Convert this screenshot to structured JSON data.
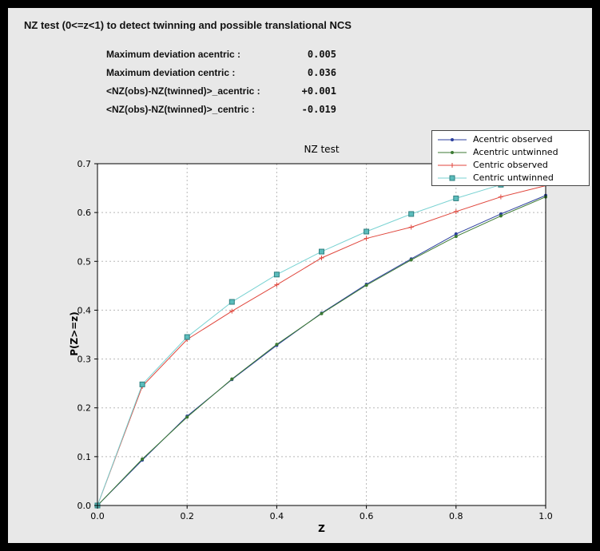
{
  "header": {
    "title": "NZ test (0<=z<1) to detect twinning and possible translational NCS"
  },
  "stats": {
    "rows": [
      {
        "label": "Maximum deviation acentric :",
        "value": "0.005"
      },
      {
        "label": "Maximum deviation centric :",
        "value": "0.036"
      },
      {
        "label": "<NZ(obs)-NZ(twinned)>_acentric :",
        "value": "+0.001"
      },
      {
        "label": "<NZ(obs)-NZ(twinned)>_centric :",
        "value": "-0.019"
      }
    ]
  },
  "colors": {
    "page_bg": "#000000",
    "window_bg": "#e8e8e8",
    "plot_bg": "#ffffff",
    "grid": "#b8b8b8",
    "frame": "#000000",
    "legend_bg": "#ffffff"
  },
  "chart_data": {
    "type": "line",
    "title": "NZ test",
    "xlabel": "Z",
    "ylabel": "P(Z>=z)",
    "xlim": [
      0.0,
      1.0
    ],
    "ylim": [
      0.0,
      0.7
    ],
    "xticks": [
      0.0,
      0.2,
      0.4,
      0.6,
      0.8,
      1.0
    ],
    "yticks": [
      0.0,
      0.1,
      0.2,
      0.3,
      0.4,
      0.5,
      0.6,
      0.7
    ],
    "grid": true,
    "legend_position": "top-right",
    "x": [
      0.0,
      0.1,
      0.2,
      0.3,
      0.4,
      0.5,
      0.6,
      0.7,
      0.8,
      0.9,
      1.0
    ],
    "series": [
      {
        "name": "Acentric observed",
        "color": "#2b3f9e",
        "marker": "point",
        "values": [
          0.0,
          0.093,
          0.183,
          0.258,
          0.328,
          0.394,
          0.453,
          0.505,
          0.556,
          0.597,
          0.635
        ]
      },
      {
        "name": "Acentric untwinned",
        "color": "#3c7a33",
        "marker": "point",
        "values": [
          0.0,
          0.095,
          0.181,
          0.259,
          0.33,
          0.393,
          0.451,
          0.503,
          0.551,
          0.593,
          0.632
        ]
      },
      {
        "name": "Centric observed",
        "color": "#e0463c",
        "marker": "plus",
        "values": [
          0.0,
          0.244,
          0.34,
          0.398,
          0.452,
          0.507,
          0.547,
          0.57,
          0.602,
          0.632,
          0.655
        ]
      },
      {
        "name": "Centric untwinned",
        "color": "#79d2d2",
        "marker": "square",
        "marker_fill": "#5bbcbc",
        "marker_edge": "#2f7f7f",
        "values": [
          0.0,
          0.248,
          0.345,
          0.417,
          0.473,
          0.52,
          0.561,
          0.597,
          0.629,
          0.657,
          0.683
        ]
      }
    ]
  }
}
